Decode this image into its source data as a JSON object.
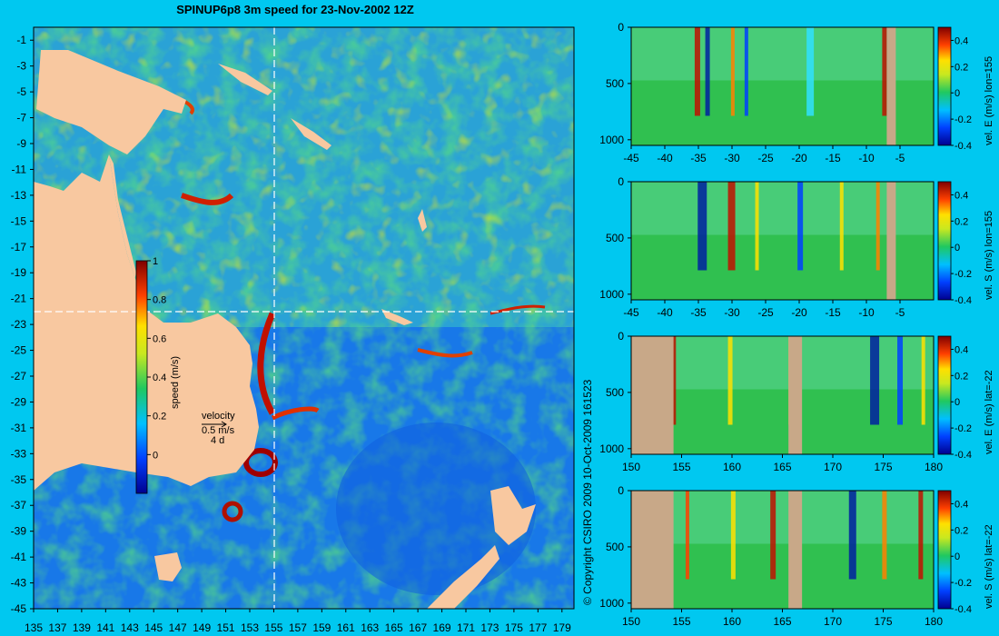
{
  "title": "SPINUP6p8 3m speed for 23-Nov-2002 12Z",
  "copyright": "© Copyright CSIRO 2009   10-Oct-2009 161523",
  "colors": {
    "background": "#00c8f0",
    "land": "#f8c8a0",
    "section_land": "#c8a888"
  },
  "map": {
    "type": "heatmap",
    "xlabels": [
      "135",
      "137",
      "139",
      "141",
      "143",
      "145",
      "147",
      "149",
      "151",
      "153",
      "155",
      "157",
      "159",
      "161",
      "163",
      "165",
      "167",
      "169",
      "171",
      "173",
      "175",
      "177",
      "179"
    ],
    "ylabels": [
      "-1",
      "-3",
      "-5",
      "-7",
      "-9",
      "-11",
      "-13",
      "-15",
      "-17",
      "-19",
      "-21",
      "-23",
      "-25",
      "-27",
      "-29",
      "-31",
      "-33",
      "-35",
      "-37",
      "-39",
      "-41",
      "-43",
      "-45"
    ],
    "xlim": [
      135,
      180
    ],
    "ylim": [
      -45,
      0
    ],
    "colorbar": {
      "label": "speed (m/s)",
      "ticks": [
        "1",
        "0.8",
        "0.6",
        "0.4",
        "0.2",
        "0"
      ],
      "range": [
        -0.2,
        1
      ]
    },
    "velocity_legend": {
      "label": "velocity",
      "speed": "0.5 m/s",
      "days": "4 d"
    },
    "crosshair": {
      "lon": 155,
      "lat": -22
    }
  },
  "chart_data": [
    {
      "type": "heatmap",
      "label": "vel. E (m/s) lon=155",
      "xlabels": [
        "-45",
        "-40",
        "-35",
        "-30",
        "-25",
        "-20",
        "-15",
        "-10",
        "-5"
      ],
      "ylabels": [
        "0",
        "500",
        "1000"
      ],
      "colorbar_ticks": [
        "0.4",
        "0.2",
        "0",
        "-0.2",
        "-0.4"
      ],
      "xlim": [
        -45,
        0
      ],
      "ylim": [
        1050,
        0
      ],
      "clim": [
        -0.4,
        0.5
      ]
    },
    {
      "type": "heatmap",
      "label": "vel. S (m/s) lon=155",
      "xlabels": [
        "-45",
        "-40",
        "-35",
        "-30",
        "-25",
        "-20",
        "-15",
        "-10",
        "-5"
      ],
      "ylabels": [
        "0",
        "500",
        "1000"
      ],
      "colorbar_ticks": [
        "0.4",
        "0.2",
        "0",
        "-0.2",
        "-0.4"
      ],
      "xlim": [
        -45,
        0
      ],
      "ylim": [
        1050,
        0
      ],
      "clim": [
        -0.4,
        0.5
      ]
    },
    {
      "type": "heatmap",
      "label": "vel. E (m/s) lat=-22",
      "xlabels": [
        "150",
        "155",
        "160",
        "165",
        "170",
        "175",
        "180"
      ],
      "ylabels": [
        "0",
        "500",
        "1000"
      ],
      "colorbar_ticks": [
        "0.4",
        "0.2",
        "0",
        "-0.2",
        "-0.4"
      ],
      "xlim": [
        150,
        180
      ],
      "ylim": [
        1050,
        0
      ],
      "clim": [
        -0.4,
        0.5
      ]
    },
    {
      "type": "heatmap",
      "label": "vel. S (m/s) lat=-22",
      "xlabels": [
        "150",
        "155",
        "160",
        "165",
        "170",
        "175",
        "180"
      ],
      "ylabels": [
        "0",
        "500",
        "1000"
      ],
      "colorbar_ticks": [
        "0.4",
        "0.2",
        "0",
        "-0.2",
        "-0.4"
      ],
      "xlim": [
        150,
        180
      ],
      "ylim": [
        1050,
        0
      ],
      "clim": [
        -0.4,
        0.5
      ]
    }
  ]
}
